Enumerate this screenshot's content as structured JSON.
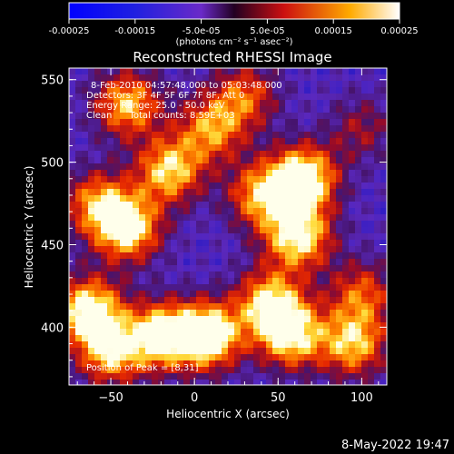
{
  "colorbar": {
    "tick_labels": [
      "-0.00025",
      "-0.00015",
      "-5.0e-05",
      "5.0e-05",
      "0.00015",
      "0.00025"
    ],
    "tick_values": [
      -0.00025,
      -0.00015,
      -5e-05,
      5e-05,
      0.00015,
      0.00025
    ],
    "range": [
      -0.00025,
      0.00025
    ],
    "unit_label": "(photons cm⁻² s⁻¹ asec⁻²)"
  },
  "info_lines": [
    "8-Feb-2010 04:57:48.000 to 05:03:48.000",
    "Detectors: 3F 4F 5F 6F 7F 8F, Att 0",
    "Energy Range: 25.0 - 50.0 keV",
    "Clean      Total counts: 8.59E+03"
  ],
  "peak_label": "Position of Peak = [8,31]",
  "footer_timestamp": "8-May-2022 19:47",
  "colors": {
    "background": "#000000",
    "axes": "#ffffff",
    "low": "#1010cc",
    "mid": "#8a34c4",
    "high": "#ff3300",
    "peak": "#ffffee"
  },
  "chart_data": {
    "type": "heatmap",
    "title": "Reconstructed RHESSI Image",
    "xlabel": "Heliocentric X (arcsec)",
    "ylabel": "Heliocentric Y (arcsec)",
    "xlim": [
      -75,
      115
    ],
    "ylim": [
      365,
      557
    ],
    "x_ticks": [
      -50,
      0,
      50,
      100
    ],
    "y_ticks": [
      400,
      450,
      500,
      550
    ],
    "blobs": [
      {
        "x": -40,
        "y": 535,
        "i": 0.7
      },
      {
        "x": 10,
        "y": 520,
        "i": 0.6
      },
      {
        "x": -15,
        "y": 495,
        "i": 0.75
      },
      {
        "x": -40,
        "y": 460,
        "i": 0.85
      },
      {
        "x": -58,
        "y": 475,
        "i": 0.6
      },
      {
        "x": -63,
        "y": 410,
        "i": 0.9
      },
      {
        "x": -50,
        "y": 385,
        "i": 0.7
      },
      {
        "x": -20,
        "y": 395,
        "i": 0.85
      },
      {
        "x": 8,
        "y": 395,
        "i": 1.0
      },
      {
        "x": 40,
        "y": 480,
        "i": 0.65
      },
      {
        "x": 65,
        "y": 490,
        "i": 0.95
      },
      {
        "x": 62,
        "y": 455,
        "i": 0.85
      },
      {
        "x": 58,
        "y": 395,
        "i": 0.8
      },
      {
        "x": 45,
        "y": 415,
        "i": 0.75
      },
      {
        "x": 95,
        "y": 390,
        "i": 0.7
      },
      {
        "x": 100,
        "y": 420,
        "i": 0.5
      },
      {
        "x": 100,
        "y": 520,
        "i": 0.3
      },
      {
        "x": 30,
        "y": 540,
        "i": 0.5
      }
    ]
  }
}
